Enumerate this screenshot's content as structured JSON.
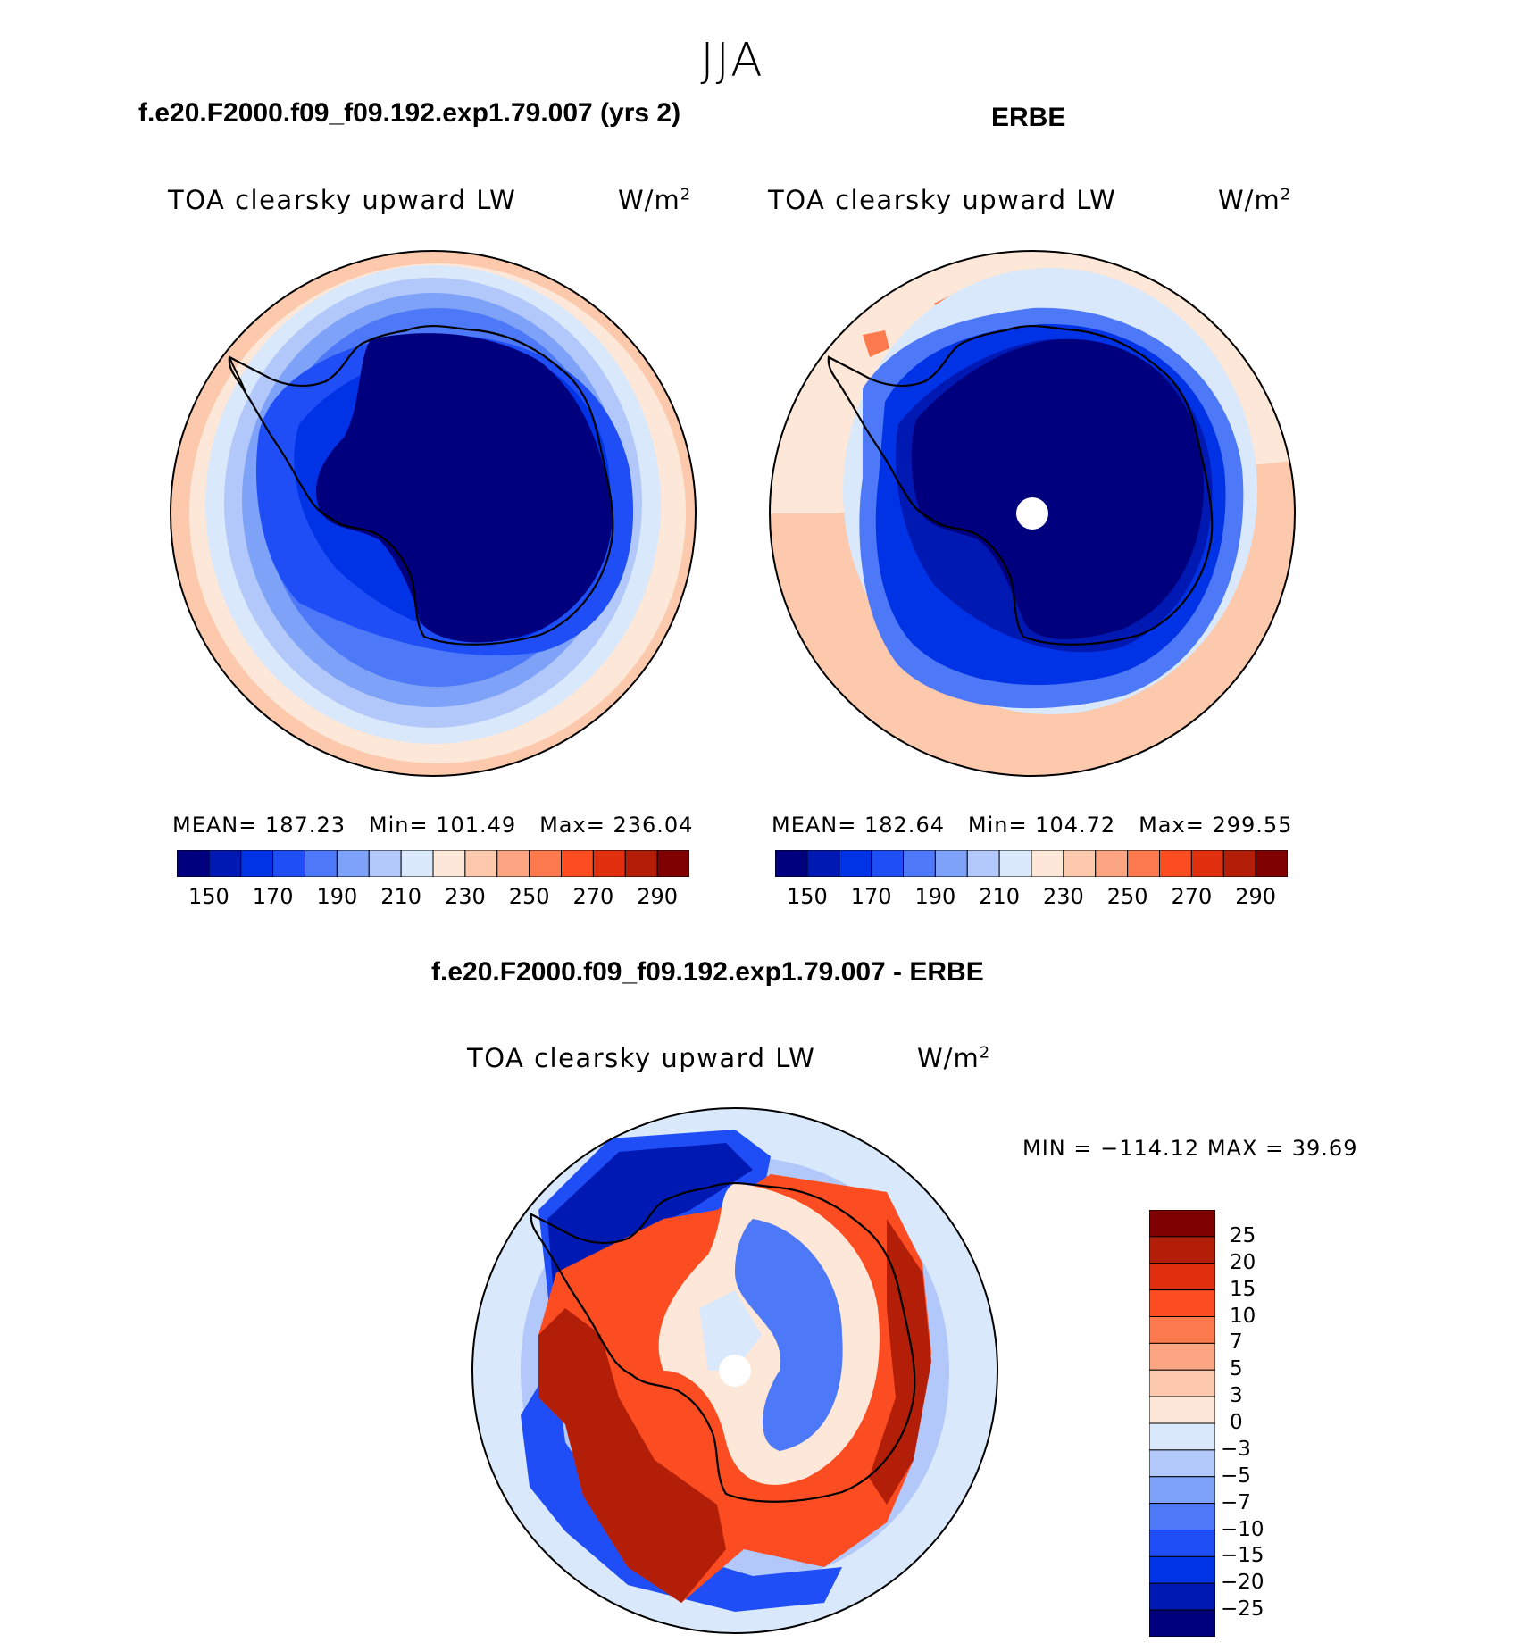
{
  "season": "JJA",
  "panels": {
    "model": {
      "case_title": "f.e20.F2000.f09_f09.192.exp1.79.007 (yrs 2)",
      "variable": "TOA clearsky upward LW",
      "units_base": "W/m",
      "units_exp": "2",
      "stats": {
        "mean_label": "MEAN=",
        "mean": "187.23",
        "min_label": "Min=",
        "min": "101.49",
        "max_label": "Max=",
        "max": "236.04"
      }
    },
    "obs": {
      "case_title": "ERBE",
      "variable": "TOA clearsky upward LW",
      "units_base": "W/m",
      "units_exp": "2",
      "stats": {
        "mean_label": "MEAN=",
        "mean": "182.64",
        "min_label": "Min=",
        "min": "104.72",
        "max_label": "Max=",
        "max": "299.55"
      }
    },
    "diff": {
      "case_title": "f.e20.F2000.f09_f09.192.exp1.79.007 - ERBE",
      "variable": "TOA clearsky upward LW",
      "units_base": "W/m",
      "units_exp": "2",
      "range_text": "MIN = −114.12 MAX =   39.69"
    }
  },
  "colorbar_abs": {
    "colors": [
      "#00007f",
      "#0019b3",
      "#0033e6",
      "#1f4ef7",
      "#4d78f7",
      "#7da2f7",
      "#b3c8fa",
      "#d9e8fb",
      "#fde7d8",
      "#fcc9ad",
      "#fca582",
      "#fc7a4d",
      "#fb4d21",
      "#e03010",
      "#b31e08",
      "#7f0000"
    ],
    "labels": [
      "150",
      "170",
      "190",
      "210",
      "230",
      "250",
      "270",
      "290"
    ]
  },
  "colorbar_diff": {
    "colors": [
      "#7f0000",
      "#b31e08",
      "#e03010",
      "#fb4d21",
      "#fc7a4d",
      "#fca582",
      "#fcc9ad",
      "#fde7d8",
      "#d9e8fb",
      "#b3c8fa",
      "#7da2f7",
      "#4d78f7",
      "#1f4ef7",
      "#0033e6",
      "#0019b3",
      "#00007f"
    ],
    "labels": [
      "25",
      "20",
      "15",
      "10",
      "7",
      "5",
      "3",
      "0",
      "−3",
      "−5",
      "−7",
      "−10",
      "−15",
      "−20",
      "−25"
    ]
  }
}
